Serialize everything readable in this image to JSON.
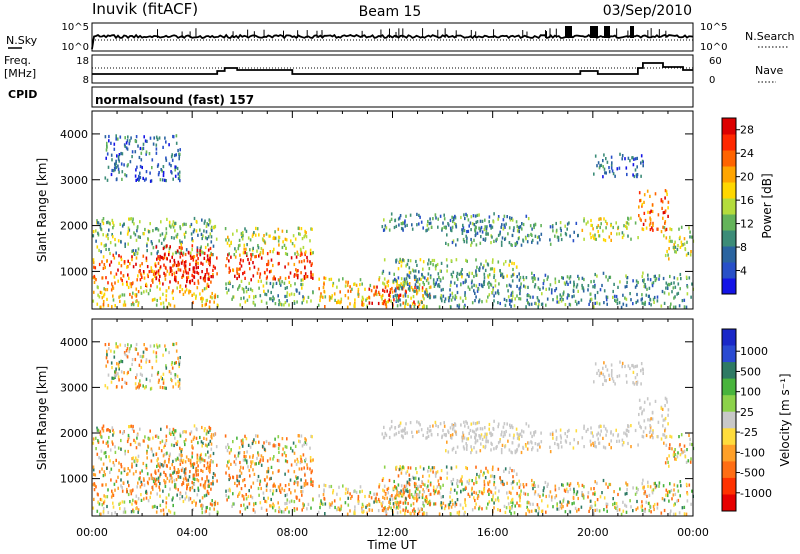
{
  "header": {
    "station": "Inuvik (fitACF)",
    "beam": "Beam 15",
    "date": "03/Sep/2010"
  },
  "strip_labels": {
    "nsky": "N.Sky",
    "freq_line1": "Freq.",
    "freq_line2": "[MHz]",
    "cpid": "CPID",
    "nsearch": "N.Search",
    "nave": "Nave",
    "nsky_ticks": [
      "10^5",
      "10^0"
    ],
    "nsearch_ticks": [
      "10^5",
      "10^0"
    ],
    "freq_ticks": [
      "18",
      "8"
    ],
    "nave_ticks": [
      "60",
      "0"
    ],
    "cpid_text": "normalsound (fast) 157"
  },
  "colors": {
    "power_scale": [
      "#1414e6",
      "#2850c8",
      "#2a64a0",
      "#3c8c78",
      "#64b45a",
      "#b4dc3c",
      "#ffd700",
      "#ffa500",
      "#ff6400",
      "#ff2800",
      "#dc0000"
    ],
    "velocity_scale": [
      "#1a28c8",
      "#2a4ad2",
      "#2e7a64",
      "#48b43c",
      "#8cd24a",
      "#c8c8c8",
      "#ffdc3c",
      "#ffa028",
      "#ff6e14",
      "#ff3200",
      "#e60000"
    ],
    "ground_scatter": "#c8c8c8"
  },
  "chart_data": [
    {
      "type": "heatmap",
      "name": "power-panel",
      "xlabel": "",
      "ylabel": "Slant Range [km]",
      "xlim": [
        0,
        24
      ],
      "ylim": [
        180,
        4500
      ],
      "yticks": [
        "1000",
        "2000",
        "3000",
        "4000"
      ],
      "colorbar_label": "Power [dB]",
      "colorbar_ticks": [
        "4",
        "8",
        "12",
        "16",
        "20",
        "24",
        "28"
      ],
      "colorbar_range": [
        0,
        30
      ]
    },
    {
      "type": "heatmap",
      "name": "velocity-panel",
      "xlabel": "Time UT",
      "ylabel": "Slant Range [km]",
      "xlim": [
        0,
        24
      ],
      "ylim": [
        180,
        4500
      ],
      "xticks": [
        "00:00",
        "04:00",
        "08:00",
        "12:00",
        "16:00",
        "20:00",
        "00:00"
      ],
      "yticks": [
        "1000",
        "2000",
        "3000",
        "4000"
      ],
      "colorbar_label": "Velocity [m s⁻¹]",
      "colorbar_ticks": [
        "1000",
        "500",
        "100",
        "25",
        "-25",
        "-100",
        "-500",
        "-1000"
      ]
    }
  ]
}
